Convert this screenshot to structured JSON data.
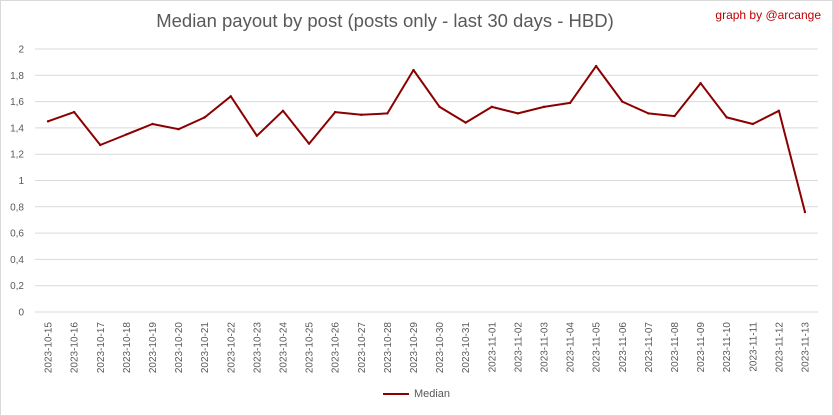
{
  "chart_data": {
    "type": "line",
    "title": "Median payout by post (posts only - last 30 days - HBD)",
    "credit": "graph by @arcange",
    "xlabel": "",
    "ylabel": "",
    "ylim": [
      0,
      2
    ],
    "yticks": [
      "0",
      "0,2",
      "0,4",
      "0,6",
      "0,8",
      "1",
      "1,2",
      "1,4",
      "1,6",
      "1,8",
      "2"
    ],
    "grid": true,
    "legend_position": "bottom",
    "categories": [
      "2023-10-15",
      "2023-10-16",
      "2023-10-17",
      "2023-10-18",
      "2023-10-19",
      "2023-10-20",
      "2023-10-21",
      "2023-10-22",
      "2023-10-23",
      "2023-10-24",
      "2023-10-25",
      "2023-10-26",
      "2023-10-27",
      "2023-10-28",
      "2023-10-29",
      "2023-10-30",
      "2023-10-31",
      "2023-11-01",
      "2023-11-02",
      "2023-11-03",
      "2023-11-04",
      "2023-11-05",
      "2023-11-06",
      "2023-11-07",
      "2023-11-08",
      "2023-11-09",
      "2023-11-10",
      "2023-11-11",
      "2023-11-12",
      "2023-11-13"
    ],
    "series": [
      {
        "name": "Median",
        "color": "#8b0000",
        "values": [
          1.45,
          1.52,
          1.27,
          1.35,
          1.43,
          1.39,
          1.48,
          1.64,
          1.34,
          1.53,
          1.28,
          1.52,
          1.5,
          1.51,
          1.84,
          1.56,
          1.44,
          1.56,
          1.51,
          1.56,
          1.59,
          1.87,
          1.6,
          1.51,
          1.49,
          1.74,
          1.48,
          1.43,
          1.53,
          0.76
        ]
      }
    ]
  }
}
